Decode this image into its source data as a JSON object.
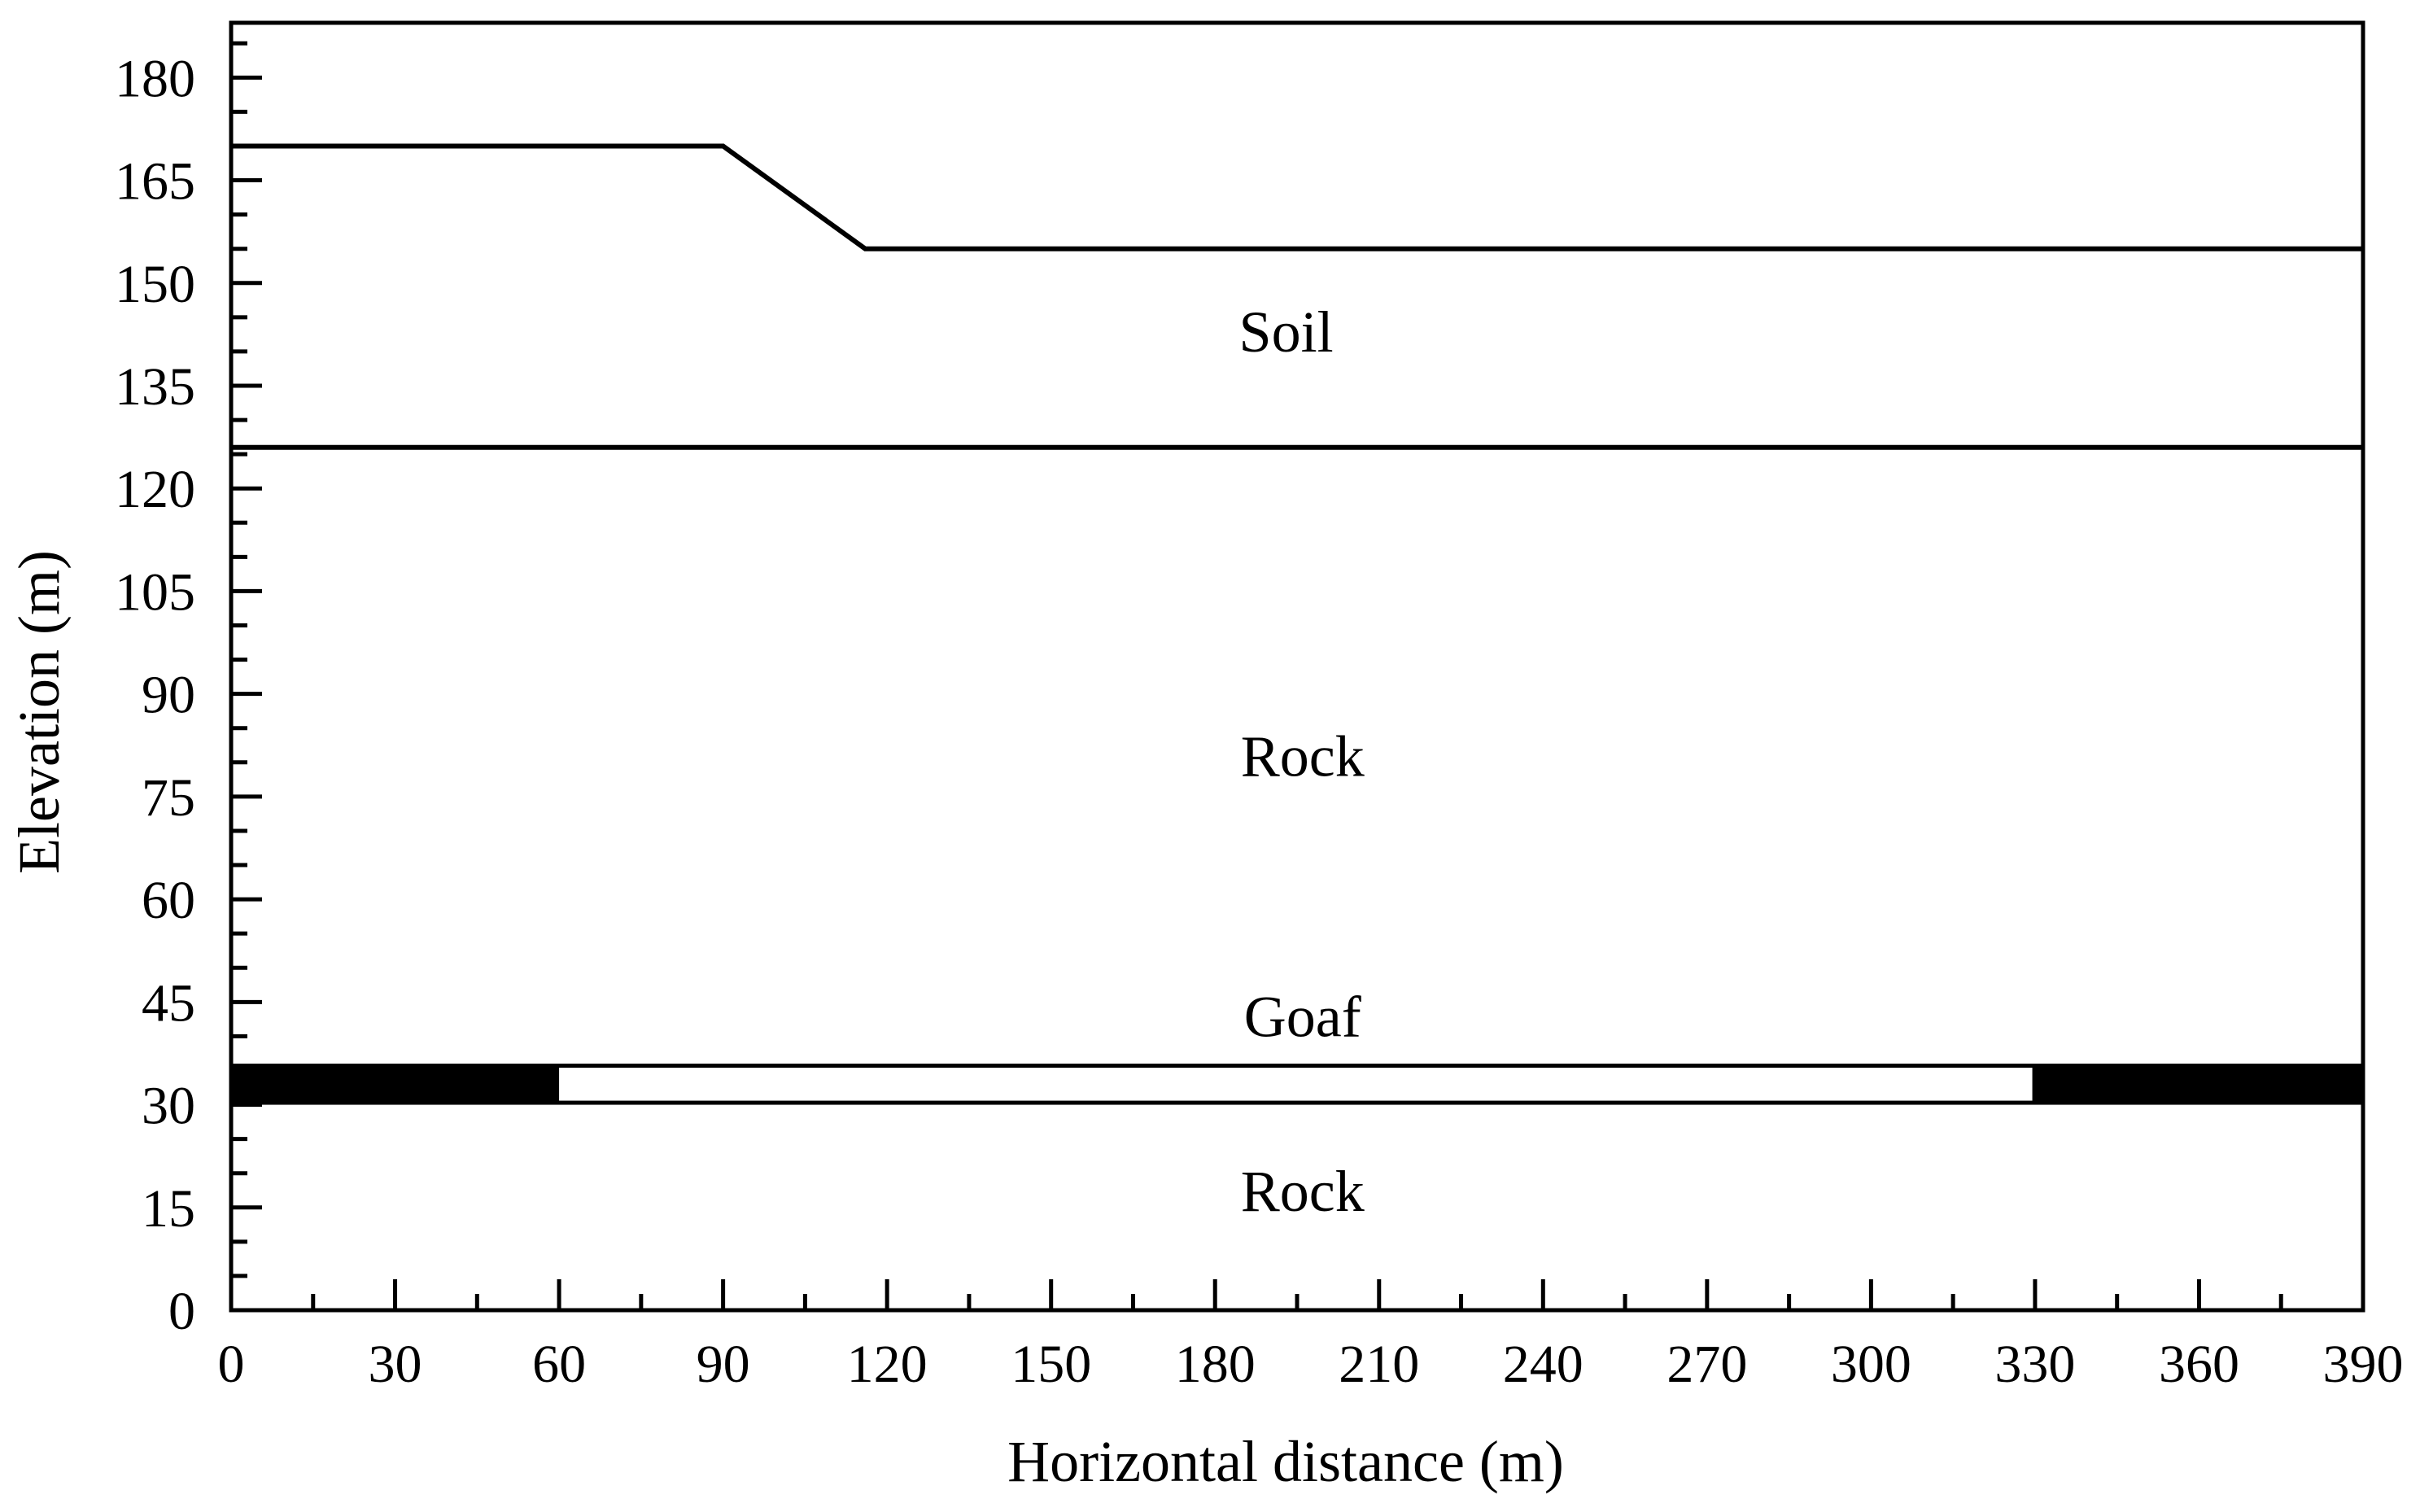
{
  "chart_data": {
    "type": "section",
    "xlabel": "Horizontal distance (m)",
    "ylabel": "Elevation (m)",
    "xlim": [
      0,
      390
    ],
    "ylim": [
      0,
      188
    ],
    "x_ticks": [
      0,
      30,
      60,
      90,
      120,
      150,
      180,
      210,
      240,
      270,
      300,
      330,
      360,
      390
    ],
    "y_ticks": [
      0,
      15,
      30,
      45,
      60,
      75,
      90,
      105,
      120,
      135,
      150,
      165,
      180
    ],
    "x_ticks_display": [
      "0",
      "30",
      "60",
      "90",
      "120",
      "150",
      "180",
      "210",
      "240",
      "270",
      "300",
      "330",
      "360",
      "390"
    ],
    "y_ticks_display": [
      "0",
      "15",
      "30",
      "45",
      "60",
      "75",
      "90",
      "105",
      "120",
      "135",
      "150",
      "165",
      "180"
    ],
    "ground_surface": {
      "x": [
        0,
        90,
        116,
        390
      ],
      "y": [
        170,
        170,
        155,
        155
      ]
    },
    "soil_rock_boundary": {
      "x": [
        0,
        390
      ],
      "y": [
        126,
        126
      ]
    },
    "coal_seam": {
      "x_range": [
        0,
        390
      ],
      "y_range": [
        30,
        36
      ]
    },
    "goaf": {
      "x_range": [
        60,
        329.5
      ],
      "y_range": [
        30,
        36
      ]
    },
    "region_labels": [
      {
        "text": "Soil",
        "x": 193,
        "y": 140
      },
      {
        "text": "Rock",
        "x": 196,
        "y": 78
      },
      {
        "text": "Goaf",
        "x": 196,
        "y": 40
      },
      {
        "text": "Rock",
        "x": 196,
        "y": 14.5
      }
    ],
    "colors": {
      "line": "#000000",
      "coal_seam": "#000000",
      "goaf": "#ffffff",
      "background": "#ffffff"
    }
  }
}
